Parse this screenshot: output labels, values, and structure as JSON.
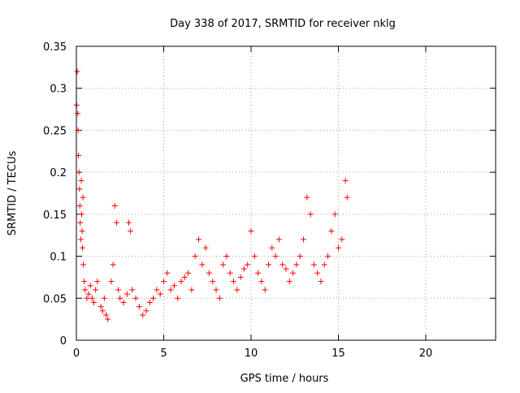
{
  "chart_data": {
    "type": "scatter",
    "title": "Day 338 of 2017, SRMTID for receiver nklg",
    "xlabel": "GPS time / hours",
    "ylabel": "SRMTID / TECUs",
    "xlim": [
      0,
      24
    ],
    "ylim": [
      0,
      0.35
    ],
    "xticks": [
      0,
      5,
      10,
      15,
      20
    ],
    "xtick_labels": [
      "0",
      "5",
      "10",
      "15",
      "20"
    ],
    "yticks": [
      0,
      0.05,
      0.1,
      0.15,
      0.2,
      0.25,
      0.3,
      0.35
    ],
    "ytick_labels": [
      "0",
      "0.05",
      "0.1",
      "0.15",
      "0.2",
      "0.25",
      "0.3",
      "0.35"
    ],
    "grid": true,
    "legend": "none",
    "marker": "plus",
    "series_color": "#ff0000",
    "series": [
      {
        "points": [
          [
            0.02,
            0.28
          ],
          [
            0.05,
            0.32
          ],
          [
            0.08,
            0.27
          ],
          [
            0.1,
            0.25
          ],
          [
            0.12,
            0.22
          ],
          [
            0.15,
            0.2
          ],
          [
            0.18,
            0.18
          ],
          [
            0.2,
            0.16
          ],
          [
            0.22,
            0.14
          ],
          [
            0.25,
            0.12
          ],
          [
            0.28,
            0.19
          ],
          [
            0.3,
            0.15
          ],
          [
            0.33,
            0.13
          ],
          [
            0.35,
            0.11
          ],
          [
            0.38,
            0.17
          ],
          [
            0.4,
            0.09
          ],
          [
            0.45,
            0.07
          ],
          [
            0.5,
            0.06
          ],
          [
            0.6,
            0.05
          ],
          [
            0.7,
            0.055
          ],
          [
            0.8,
            0.065
          ],
          [
            0.9,
            0.05
          ],
          [
            1.0,
            0.045
          ],
          [
            1.1,
            0.06
          ],
          [
            1.2,
            0.07
          ],
          [
            1.4,
            0.04
          ],
          [
            1.5,
            0.035
          ],
          [
            1.6,
            0.05
          ],
          [
            1.7,
            0.03
          ],
          [
            1.8,
            0.025
          ],
          [
            2.0,
            0.07
          ],
          [
            2.1,
            0.09
          ],
          [
            2.2,
            0.16
          ],
          [
            2.3,
            0.14
          ],
          [
            2.4,
            0.06
          ],
          [
            2.5,
            0.05
          ],
          [
            2.7,
            0.045
          ],
          [
            2.9,
            0.055
          ],
          [
            3.0,
            0.14
          ],
          [
            3.1,
            0.13
          ],
          [
            3.2,
            0.06
          ],
          [
            3.4,
            0.05
          ],
          [
            3.6,
            0.04
          ],
          [
            3.8,
            0.03
          ],
          [
            4.0,
            0.035
          ],
          [
            4.2,
            0.045
          ],
          [
            4.4,
            0.05
          ],
          [
            4.6,
            0.06
          ],
          [
            4.8,
            0.055
          ],
          [
            5.0,
            0.07
          ],
          [
            5.2,
            0.08
          ],
          [
            5.4,
            0.06
          ],
          [
            5.6,
            0.065
          ],
          [
            5.8,
            0.05
          ],
          [
            6.0,
            0.07
          ],
          [
            6.2,
            0.075
          ],
          [
            6.4,
            0.08
          ],
          [
            6.6,
            0.06
          ],
          [
            6.8,
            0.1
          ],
          [
            7.0,
            0.12
          ],
          [
            7.2,
            0.09
          ],
          [
            7.4,
            0.11
          ],
          [
            7.6,
            0.08
          ],
          [
            7.8,
            0.07
          ],
          [
            8.0,
            0.06
          ],
          [
            8.2,
            0.05
          ],
          [
            8.4,
            0.09
          ],
          [
            8.6,
            0.1
          ],
          [
            8.8,
            0.08
          ],
          [
            9.0,
            0.07
          ],
          [
            9.2,
            0.06
          ],
          [
            9.4,
            0.075
          ],
          [
            9.6,
            0.085
          ],
          [
            9.8,
            0.09
          ],
          [
            10.0,
            0.13
          ],
          [
            10.2,
            0.1
          ],
          [
            10.4,
            0.08
          ],
          [
            10.6,
            0.07
          ],
          [
            10.8,
            0.06
          ],
          [
            11.0,
            0.09
          ],
          [
            11.2,
            0.11
          ],
          [
            11.4,
            0.1
          ],
          [
            11.6,
            0.12
          ],
          [
            11.8,
            0.09
          ],
          [
            12.0,
            0.085
          ],
          [
            12.2,
            0.07
          ],
          [
            12.4,
            0.08
          ],
          [
            12.6,
            0.09
          ],
          [
            12.8,
            0.1
          ],
          [
            13.0,
            0.12
          ],
          [
            13.2,
            0.17
          ],
          [
            13.4,
            0.15
          ],
          [
            13.6,
            0.09
          ],
          [
            13.8,
            0.08
          ],
          [
            14.0,
            0.07
          ],
          [
            14.2,
            0.09
          ],
          [
            14.4,
            0.1
          ],
          [
            14.6,
            0.13
          ],
          [
            14.8,
            0.15
          ],
          [
            15.0,
            0.11
          ],
          [
            15.2,
            0.12
          ],
          [
            15.4,
            0.19
          ],
          [
            15.5,
            0.17
          ]
        ]
      }
    ]
  }
}
